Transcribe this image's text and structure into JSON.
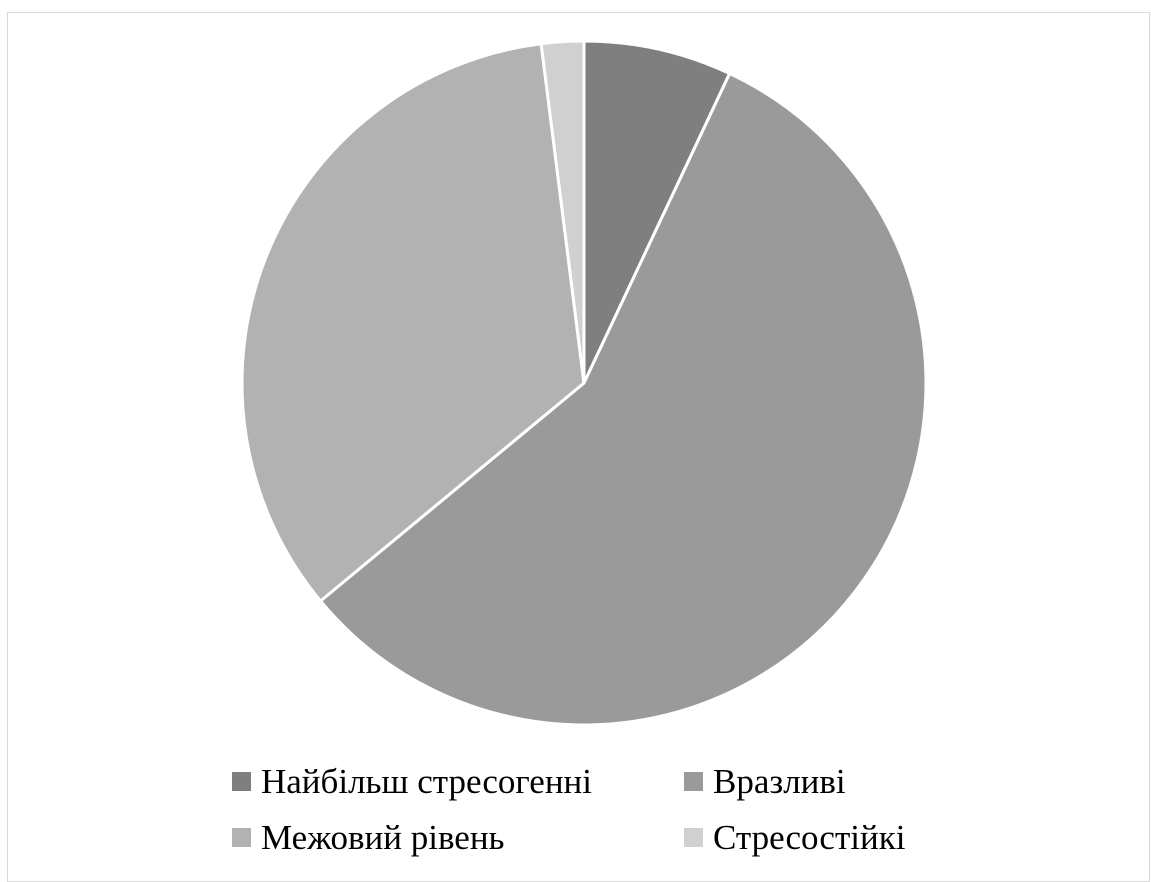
{
  "chart_data": {
    "type": "pie",
    "title": "",
    "start_angle_deg": 0,
    "direction": "clockwise",
    "legend_position": "bottom",
    "slices": [
      {
        "label": "Найбільш стресогенні",
        "value": 7,
        "color": "#7f7f7f"
      },
      {
        "label": "Вразливі",
        "value": 57,
        "color": "#9a9a9a"
      },
      {
        "label": "Межовий рівень",
        "value": 34,
        "color": "#b2b2b2"
      },
      {
        "label": "Стресостійкі",
        "value": 2,
        "color": "#d0d0d0"
      }
    ]
  }
}
